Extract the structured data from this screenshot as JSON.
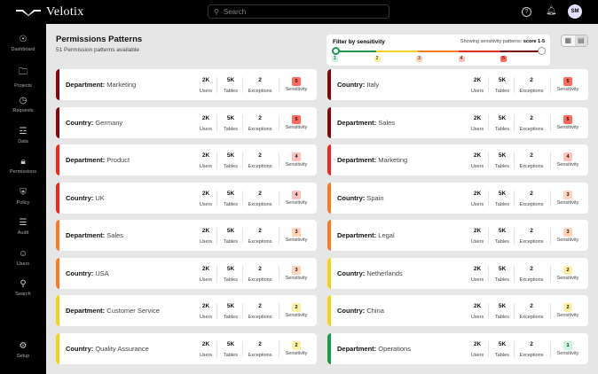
{
  "app": {
    "name": "Velotix",
    "search_placeholder": "Search",
    "user_initials": "SM"
  },
  "sidebar": {
    "items": [
      {
        "label": "Dashboard",
        "icon": "gauge-icon"
      },
      {
        "label": "Projects",
        "icon": "folder-icon"
      },
      {
        "label": "Requests",
        "icon": "requests-icon"
      },
      {
        "label": "Data",
        "icon": "database-icon"
      },
      {
        "label": "Permissions",
        "icon": "lock-icon"
      },
      {
        "label": "Policy",
        "icon": "shield-icon"
      },
      {
        "label": "Audit",
        "icon": "list-check-icon"
      },
      {
        "label": "Users",
        "icon": "user-icon"
      },
      {
        "label": "Search",
        "icon": "search-icon"
      },
      {
        "label": "Setup",
        "icon": "gear-icon"
      }
    ]
  },
  "page": {
    "title": "Permissions Patterns",
    "subtitle": "51 Permission patterns available"
  },
  "filter": {
    "label": "Filter by sensitivity",
    "showing_prefix": "Showing sensitivity patterns:",
    "showing_value": "score 1-5",
    "range": [
      1,
      5
    ],
    "levels": [
      "1",
      "2",
      "3",
      "4",
      "5"
    ]
  },
  "sensitivity_colors": {
    "1": "#1a9a4a",
    "2": "#f2d21e",
    "3": "#f57b2a",
    "4": "#ea2a22",
    "5": "#7d0b0b"
  },
  "badge_colors": {
    "1": "#c9f5df",
    "2": "#fbf1a6",
    "3": "#ffd3b8",
    "4": "#ffc0bd",
    "5": "#ff6a5e"
  },
  "stat_labels": {
    "users": "Users",
    "tables": "Tables",
    "exceptions": "Exceptions",
    "sensitivity": "Sensitivity"
  },
  "patterns": [
    {
      "type": "Department:",
      "value": "Marketing",
      "users": "2K",
      "tables": "5K",
      "exceptions": "2",
      "sensitivity": "5"
    },
    {
      "type": "Country:",
      "value": "Italy",
      "users": "2K",
      "tables": "5K",
      "exceptions": "2",
      "sensitivity": "5"
    },
    {
      "type": "Country:",
      "value": "Germany",
      "users": "2K",
      "tables": "5K",
      "exceptions": "2",
      "sensitivity": "5"
    },
    {
      "type": "Department:",
      "value": "Sales",
      "users": "2K",
      "tables": "5K",
      "exceptions": "2",
      "sensitivity": "5"
    },
    {
      "type": "Department:",
      "value": "Product",
      "users": "2K",
      "tables": "5K",
      "exceptions": "2",
      "sensitivity": "4"
    },
    {
      "type": "Department:",
      "value": "Marketing",
      "users": "2K",
      "tables": "5K",
      "exceptions": "2",
      "sensitivity": "4"
    },
    {
      "type": "Country:",
      "value": "UK",
      "users": "2K",
      "tables": "5K",
      "exceptions": "2",
      "sensitivity": "4"
    },
    {
      "type": "Country:",
      "value": "Spain",
      "users": "2K",
      "tables": "5K",
      "exceptions": "2",
      "sensitivity": "3"
    },
    {
      "type": "Department:",
      "value": "Sales",
      "users": "2K",
      "tables": "5K",
      "exceptions": "2",
      "sensitivity": "3"
    },
    {
      "type": "Department:",
      "value": "Legal",
      "users": "2K",
      "tables": "5K",
      "exceptions": "2",
      "sensitivity": "3"
    },
    {
      "type": "Country:",
      "value": "USA",
      "users": "2K",
      "tables": "5K",
      "exceptions": "2",
      "sensitivity": "3"
    },
    {
      "type": "Country:",
      "value": "Netherlands",
      "users": "2K",
      "tables": "5K",
      "exceptions": "2",
      "sensitivity": "2"
    },
    {
      "type": "Department:",
      "value": "Customer Service",
      "users": "2K",
      "tables": "5K",
      "exceptions": "2",
      "sensitivity": "2"
    },
    {
      "type": "Country:",
      "value": "China",
      "users": "2K",
      "tables": "5K",
      "exceptions": "2",
      "sensitivity": "2"
    },
    {
      "type": "Country:",
      "value": "Quality Assurance",
      "users": "2K",
      "tables": "5K",
      "exceptions": "2",
      "sensitivity": "2"
    },
    {
      "type": "Department:",
      "value": "Operations",
      "users": "2K",
      "tables": "5K",
      "exceptions": "2",
      "sensitivity": "1"
    }
  ]
}
